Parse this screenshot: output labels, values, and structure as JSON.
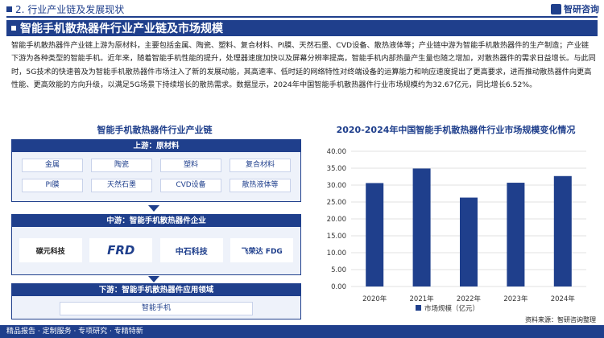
{
  "header": {
    "section": "2. 行业产业链及发展现状",
    "logo": "智研咨询"
  },
  "banner": "智能手机散热器件行业产业链及市场规模",
  "paragraph": "智能手机散热器件产业链上游为原材料，主要包括金属、陶瓷、塑料、复合材料、PI膜、天然石墨、CVD设备、散热液体等；产业链中游为智能手机散热器件的生产制造；产业链下游为各种类型的智能手机。近年来，随着智能手机性能的提升，处理器速度加快以及屏幕分辨率提高，智能手机内部热量产生量也随之增加，对散热器件的需求日益增长。与此同时，5G技术的快速普及为智能手机散热器件市场注入了新的发展动能，其高速率、低时延的网络特性对终端设备的运算能力和响应速度提出了更高要求，进而推动散热器件向更高性能、更高效能的方向升级，以满足5G场景下持续增长的散热需求。数据显示，2024年中国智能手机散热器件行业市场规模约为32.67亿元，同比增长6.52%。",
  "chain": {
    "title": "智能手机散热器件行业产业链",
    "upstream": {
      "header": "上游：原材料",
      "items": [
        "金属",
        "陶瓷",
        "塑料",
        "复合材料",
        "PI膜",
        "天然石墨",
        "CVD设备",
        "散热液体等"
      ]
    },
    "midstream": {
      "header": "中游：智能手机散热器件企业",
      "companies": [
        "碳元科技",
        "FRD",
        "中石科技",
        "飞荣达 FDG"
      ]
    },
    "downstream": {
      "header": "下游：智能手机散热器件应用领域",
      "item": "智能手机"
    }
  },
  "chart_title": "2020-2024年中国智能手机散热器件行业市场规模变化情况",
  "chart_data": {
    "type": "bar",
    "categories": [
      "2020年",
      "2021年",
      "2022年",
      "2023年",
      "2024年"
    ],
    "series": [
      {
        "name": "市场规模（亿元）",
        "values": [
          30.6,
          34.9,
          26.3,
          30.7,
          32.67
        ]
      }
    ],
    "ylim": [
      0,
      40
    ],
    "yticks": [
      "0.00",
      "5.00",
      "10.00",
      "15.00",
      "20.00",
      "25.00",
      "30.00",
      "35.00",
      "40.00"
    ],
    "grid": true,
    "legend": "bottom",
    "color": "#1f3f8c"
  },
  "source": "资料来源：智研咨询整理",
  "footer": "精品报告 · 定制服务 · 专项研究 · 专精特新"
}
